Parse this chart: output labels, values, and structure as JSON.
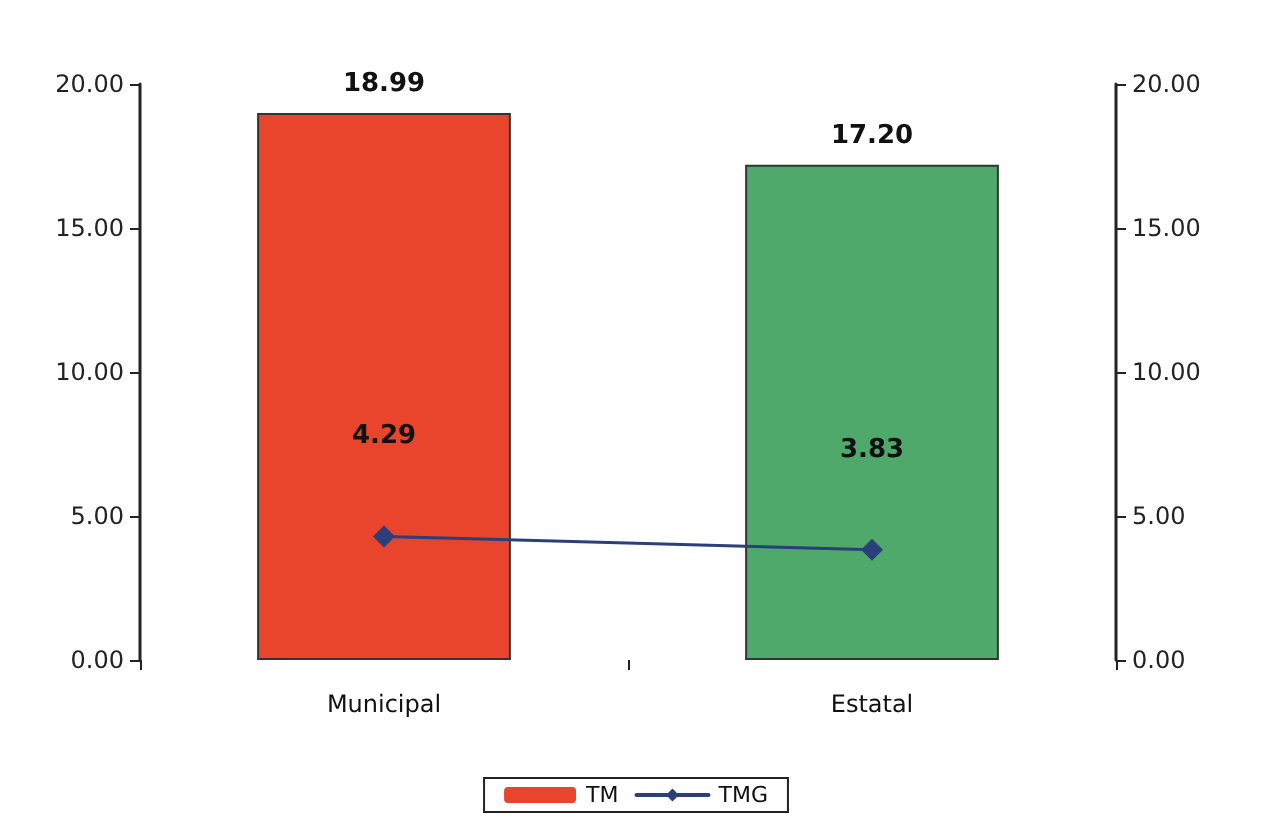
{
  "chart_data": {
    "type": "bar",
    "categories": [
      "Municipal",
      "Estatal"
    ],
    "series": [
      {
        "name": "TM",
        "colors": [
          "#e8452c",
          "#4fa96b"
        ],
        "values": [
          18.99,
          17.2
        ],
        "value_labels": [
          "18.99",
          "17.20"
        ]
      },
      {
        "name": "TMG",
        "type": "line",
        "color": "#2b3f7a",
        "values": [
          4.29,
          3.83
        ],
        "value_labels": [
          "4.29",
          "3.83"
        ]
      }
    ],
    "ylim": [
      0,
      20
    ],
    "yticks": [
      {
        "value": 0,
        "label": "0.00"
      },
      {
        "value": 5,
        "label": "5.00"
      },
      {
        "value": 10,
        "label": "10.00"
      },
      {
        "value": 15,
        "label": "15.00"
      },
      {
        "value": 20,
        "label": "20.00"
      }
    ],
    "y2lim": [
      0,
      20
    ],
    "y2ticks": [
      {
        "value": 0,
        "label": "0.00"
      },
      {
        "value": 5,
        "label": "5.00"
      },
      {
        "value": 10,
        "label": "10.00"
      },
      {
        "value": 15,
        "label": "15.00"
      },
      {
        "value": 20,
        "label": "20.00"
      }
    ],
    "legend": "bottom",
    "marker": "diamond",
    "line_style": "solid"
  }
}
